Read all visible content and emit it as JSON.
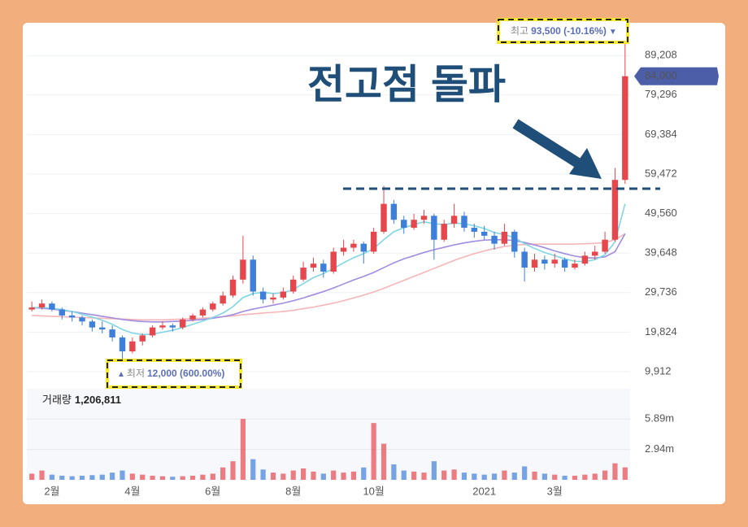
{
  "chart_data": {
    "type": "candlestick",
    "headline": "전고점 돌파",
    "categories": [
      null,
      null,
      "2월",
      null,
      null,
      null,
      null,
      null,
      null,
      null,
      "4월",
      null,
      null,
      null,
      null,
      null,
      null,
      null,
      "6월",
      null,
      null,
      null,
      null,
      null,
      null,
      null,
      "8월",
      null,
      null,
      null,
      null,
      null,
      null,
      null,
      "10월",
      null,
      null,
      null,
      null,
      null,
      null,
      null,
      null,
      null,
      null,
      "2021",
      null,
      null,
      null,
      null,
      null,
      null,
      "3월",
      null,
      null,
      null,
      null,
      null,
      null,
      null
    ],
    "ohlc": [
      [
        25500,
        27500,
        25000,
        26000
      ],
      [
        26000,
        28000,
        25500,
        27000
      ],
      [
        27000,
        27500,
        25000,
        25500
      ],
      [
        25500,
        26000,
        23000,
        24000
      ],
      [
        24000,
        25000,
        22500,
        23500
      ],
      [
        23500,
        24000,
        21500,
        22500
      ],
      [
        22500,
        23000,
        20000,
        21000
      ],
      [
        21000,
        22500,
        19500,
        20500
      ],
      [
        20500,
        21500,
        17500,
        18500
      ],
      [
        18500,
        19000,
        12000,
        15000
      ],
      [
        15000,
        18500,
        14500,
        17500
      ],
      [
        17500,
        19500,
        16500,
        19000
      ],
      [
        19000,
        21500,
        18500,
        21000
      ],
      [
        21000,
        22500,
        20500,
        21500
      ],
      [
        21500,
        22000,
        20000,
        21000
      ],
      [
        21000,
        23500,
        20500,
        23000
      ],
      [
        23000,
        24500,
        22500,
        24000
      ],
      [
        24000,
        26000,
        23500,
        25500
      ],
      [
        25500,
        27500,
        25000,
        27000
      ],
      [
        27000,
        30000,
        26500,
        29000
      ],
      [
        29000,
        34000,
        28500,
        33000
      ],
      [
        33000,
        44000,
        32000,
        38000
      ],
      [
        38000,
        39000,
        29000,
        30000
      ],
      [
        30000,
        31000,
        27000,
        28000
      ],
      [
        28000,
        29500,
        27000,
        28500
      ],
      [
        28500,
        31000,
        28000,
        30000
      ],
      [
        30000,
        34000,
        29500,
        33000
      ],
      [
        33000,
        37500,
        32500,
        36000
      ],
      [
        36000,
        38500,
        35000,
        37000
      ],
      [
        37000,
        38000,
        33500,
        35000
      ],
      [
        35000,
        41000,
        34500,
        40000
      ],
      [
        40000,
        43000,
        39000,
        41000
      ],
      [
        41000,
        43000,
        40000,
        42000
      ],
      [
        42000,
        42500,
        37000,
        40000
      ],
      [
        40000,
        46000,
        39500,
        45000
      ],
      [
        45000,
        56500,
        44500,
        52000
      ],
      [
        52000,
        53000,
        47000,
        48000
      ],
      [
        48000,
        49000,
        44500,
        46000
      ],
      [
        46000,
        49500,
        45500,
        48000
      ],
      [
        48000,
        50500,
        47000,
        49000
      ],
      [
        49000,
        49500,
        38000,
        43000
      ],
      [
        43000,
        48000,
        42500,
        47000
      ],
      [
        47000,
        52000,
        46000,
        49000
      ],
      [
        49000,
        50000,
        45000,
        46000
      ],
      [
        46000,
        47000,
        43500,
        45000
      ],
      [
        45000,
        46500,
        43000,
        44000
      ],
      [
        44000,
        45000,
        40500,
        42000
      ],
      [
        42000,
        47000,
        41500,
        45000
      ],
      [
        45000,
        45500,
        38500,
        40000
      ],
      [
        40000,
        41000,
        32500,
        36000
      ],
      [
        36000,
        39500,
        35000,
        38000
      ],
      [
        38000,
        39000,
        35500,
        37000
      ],
      [
        37000,
        39500,
        36000,
        38000
      ],
      [
        38000,
        38500,
        35000,
        36000
      ],
      [
        36000,
        38000,
        35500,
        37000
      ],
      [
        37000,
        40000,
        36500,
        39000
      ],
      [
        39000,
        41500,
        38000,
        40000
      ],
      [
        40000,
        45000,
        39500,
        43000
      ],
      [
        43000,
        61000,
        42500,
        58000
      ],
      [
        58000,
        93500,
        57000,
        84000
      ]
    ],
    "up_color": "#e5474d",
    "down_color": "#3d7fd9",
    "moving_averages": [
      {
        "color": "#f4b6b9",
        "values": [
          24000,
          23900,
          23800,
          23700,
          23600,
          23500,
          23400,
          23300,
          23200,
          23100,
          23000,
          22900,
          22900,
          22900,
          23000,
          23100,
          23200,
          23300,
          23500,
          23700,
          23900,
          24200,
          24400,
          24600,
          24800,
          25000,
          25300,
          25700,
          26100,
          26600,
          27100,
          27700,
          28400,
          29100,
          29900,
          30800,
          31800,
          32800,
          33800,
          34800,
          35800,
          36800,
          37800,
          38700,
          39500,
          40200,
          40800,
          41300,
          41600,
          41800,
          41900,
          41900,
          41900,
          41900,
          41900,
          42000,
          42100,
          42300,
          43000,
          44500
        ]
      },
      {
        "color": "#a08ce0",
        "values": [
          26000,
          25800,
          25600,
          25300,
          25000,
          24600,
          24200,
          23800,
          23400,
          23000,
          22700,
          22500,
          22400,
          22400,
          22500,
          22600,
          22800,
          23000,
          23300,
          23700,
          24200,
          25000,
          25600,
          26100,
          26600,
          27100,
          27700,
          28400,
          29200,
          30000,
          30900,
          31900,
          32900,
          33800,
          34800,
          36000,
          37200,
          38200,
          39000,
          39800,
          40500,
          41100,
          41700,
          42200,
          42600,
          42900,
          43000,
          43000,
          42800,
          42300,
          41700,
          41000,
          40200,
          39500,
          38900,
          38500,
          38400,
          38700,
          40000,
          44500
        ]
      },
      {
        "color": "#7fd6e6",
        "values": [
          26000,
          26000,
          25800,
          25500,
          25000,
          24300,
          23600,
          22800,
          21800,
          20500,
          19600,
          19200,
          19300,
          19800,
          20300,
          21000,
          21800,
          22600,
          23500,
          24600,
          26200,
          28500,
          29500,
          29800,
          29500,
          29700,
          30500,
          32000,
          33500,
          34500,
          35800,
          37200,
          38500,
          39500,
          40800,
          43000,
          45000,
          46000,
          46800,
          47500,
          47000,
          46800,
          47200,
          47000,
          46500,
          45800,
          44800,
          44300,
          43500,
          42000,
          40800,
          39800,
          39000,
          38200,
          37600,
          37500,
          38000,
          39200,
          42500,
          52000
        ]
      }
    ],
    "ylim": [
      7260,
      94960
    ],
    "yticks": [
      {
        "value": 9912,
        "label": "9,912"
      },
      {
        "value": 19824,
        "label": "19,824"
      },
      {
        "value": 29736,
        "label": "29,736"
      },
      {
        "value": 39648,
        "label": "39,648"
      },
      {
        "value": 49560,
        "label": "49,560"
      },
      {
        "value": 59472,
        "label": "59,472"
      },
      {
        "value": 69384,
        "label": "69,384"
      },
      {
        "value": 79296,
        "label": "79,296"
      },
      {
        "value": 89208,
        "label": "89,208"
      }
    ],
    "grid": true,
    "last_price": {
      "value": 84000,
      "label": "84,000"
    },
    "reference_line": 55800,
    "high_annotation": {
      "label": "최고",
      "text": "93,500 (-10.16%)",
      "arrow": "▼"
    },
    "low_annotation": {
      "label": "최저",
      "text": "12,000 (600.00%)",
      "arrow": "▲"
    },
    "volume": {
      "title": "거래량",
      "last": {
        "value": 1206811,
        "label": "1,206,811"
      },
      "values": [
        600000,
        900000,
        500000,
        400000,
        350000,
        400000,
        450000,
        500000,
        700000,
        900000,
        600000,
        500000,
        400000,
        350000,
        300000,
        350000,
        400000,
        500000,
        600000,
        1200000,
        1800000,
        5900000,
        2000000,
        1000000,
        700000,
        600000,
        900000,
        1100000,
        800000,
        600000,
        900000,
        700000,
        800000,
        1200000,
        5500000,
        3500000,
        1500000,
        900000,
        800000,
        700000,
        1800000,
        900000,
        1000000,
        700000,
        600000,
        500000,
        600000,
        900000,
        700000,
        1300000,
        800000,
        600000,
        500000,
        400000,
        400000,
        500000,
        600000,
        900000,
        1600000,
        1206811
      ],
      "ylim": [
        0,
        8820000
      ],
      "yticks": [
        {
          "value": 2940000,
          "label": "2.94m"
        },
        {
          "value": 5890000,
          "label": "5.89m"
        }
      ]
    }
  }
}
